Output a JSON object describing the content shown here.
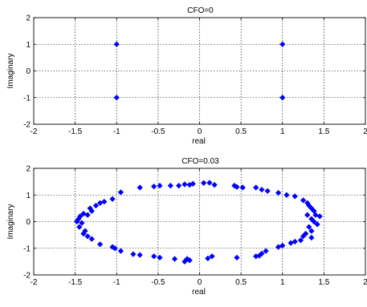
{
  "figure": {
    "background": "#ffffff",
    "marker_color": "#0000ff"
  },
  "chart_data": [
    {
      "type": "scatter",
      "title": "CFO=0",
      "xlabel": "real",
      "ylabel": "Imaginary",
      "xlim": [
        -2,
        2
      ],
      "ylim": [
        -2,
        2
      ],
      "xticks": [
        -2,
        -1.5,
        -1,
        -0.5,
        0,
        0.5,
        1,
        1.5,
        2
      ],
      "yticks": [
        -2,
        -1,
        0,
        1,
        2
      ],
      "xtick_labels": [
        "-2",
        "-1.5",
        "-1",
        "-0.5",
        "0",
        "0.5",
        "1",
        "1.5",
        "2"
      ],
      "ytick_labels": [
        "-2",
        "-1",
        "0",
        "1",
        "2"
      ],
      "grid": true,
      "marker": "diamond",
      "points": [
        [
          -1,
          1
        ],
        [
          1,
          1
        ],
        [
          -1,
          -1
        ],
        [
          1,
          -1
        ]
      ]
    },
    {
      "type": "scatter",
      "title": "CFO=0.03",
      "xlabel": "real",
      "ylabel": "Imaginary",
      "xlim": [
        -2,
        2
      ],
      "ylim": [
        -2,
        2
      ],
      "xticks": [
        -2,
        -1.5,
        -1,
        -0.5,
        0,
        0.5,
        1,
        1.5,
        2
      ],
      "yticks": [
        -2,
        -1,
        0,
        1,
        2
      ],
      "xtick_labels": [
        "-2",
        "-1.5",
        "-1",
        "-0.5",
        "0",
        "0.5",
        "1",
        "1.5",
        "2"
      ],
      "ytick_labels": [
        "-2",
        "-1",
        "0",
        "1",
        "2"
      ],
      "grid": true,
      "marker": "diamond",
      "points": [
        [
          0.05,
          1.45
        ],
        [
          0.12,
          1.46
        ],
        [
          0.18,
          1.38
        ],
        [
          0.45,
          1.3
        ],
        [
          0.52,
          1.28
        ],
        [
          0.68,
          1.28
        ],
        [
          0.75,
          1.2
        ],
        [
          0.95,
          1.08
        ],
        [
          1.05,
          1.0
        ],
        [
          1.15,
          0.95
        ],
        [
          1.25,
          0.8
        ],
        [
          1.32,
          0.6
        ],
        [
          1.35,
          0.5
        ],
        [
          1.38,
          0.4
        ],
        [
          1.4,
          0.25
        ],
        [
          1.45,
          0.2
        ],
        [
          1.3,
          0.25
        ],
        [
          1.35,
          0.1
        ],
        [
          1.38,
          0.0
        ],
        [
          1.42,
          -0.1
        ],
        [
          1.32,
          -0.2
        ],
        [
          1.35,
          -0.35
        ],
        [
          1.28,
          -0.45
        ],
        [
          1.25,
          -0.55
        ],
        [
          1.35,
          -0.6
        ],
        [
          1.22,
          -0.7
        ],
        [
          1.15,
          -0.75
        ],
        [
          1.1,
          -0.8
        ],
        [
          1.0,
          -0.9
        ],
        [
          0.95,
          -0.95
        ],
        [
          0.8,
          -1.1
        ],
        [
          0.75,
          -1.2
        ],
        [
          0.72,
          -1.28
        ],
        [
          0.68,
          -1.3
        ],
        [
          0.45,
          -1.35
        ],
        [
          0.15,
          -1.3
        ],
        [
          0.1,
          -1.38
        ],
        [
          -0.15,
          -1.4
        ],
        [
          -0.12,
          -1.45
        ],
        [
          -0.18,
          -1.5
        ],
        [
          -0.3,
          -1.4
        ],
        [
          -0.48,
          -1.35
        ],
        [
          -0.55,
          -1.3
        ],
        [
          -0.72,
          -1.25
        ],
        [
          -0.8,
          -1.22
        ],
        [
          -0.95,
          -1.1
        ],
        [
          -1.02,
          -1.0
        ],
        [
          -1.05,
          -0.95
        ],
        [
          -1.2,
          -0.85
        ],
        [
          -1.3,
          -0.65
        ],
        [
          -1.35,
          -0.55
        ],
        [
          -1.4,
          -0.45
        ],
        [
          -1.38,
          -0.35
        ],
        [
          -1.45,
          -0.2
        ],
        [
          -1.42,
          -0.05
        ],
        [
          -1.48,
          0.0
        ],
        [
          -1.46,
          0.1
        ],
        [
          -1.44,
          0.2
        ],
        [
          -1.35,
          0.25
        ],
        [
          -1.4,
          0.3
        ],
        [
          -1.3,
          0.4
        ],
        [
          -1.32,
          0.5
        ],
        [
          -1.2,
          0.7
        ],
        [
          -1.15,
          0.75
        ],
        [
          -1.05,
          0.85
        ],
        [
          -0.95,
          1.1
        ],
        [
          -0.72,
          1.28
        ],
        [
          -0.55,
          1.32
        ],
        [
          -0.48,
          1.35
        ],
        [
          -0.25,
          1.35
        ],
        [
          -0.18,
          1.4
        ],
        [
          -0.12,
          1.38
        ],
        [
          -0.35,
          1.35
        ],
        [
          0.42,
          1.35
        ],
        [
          0.82,
          1.15
        ],
        [
          -0.08,
          1.42
        ],
        [
          -1.25,
          0.6
        ],
        [
          1.3,
          0.7
        ]
      ]
    }
  ]
}
